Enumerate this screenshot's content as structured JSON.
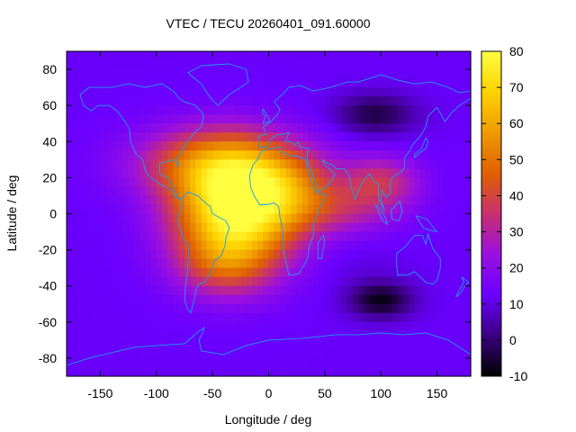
{
  "chart_data": {
    "type": "heatmap",
    "title": "VTEC / TECU 20260401_091.60000",
    "xlabel": "Longitude / deg",
    "ylabel": "Latitude / deg",
    "xlim": [
      -180,
      180
    ],
    "ylim": [
      -90,
      90
    ],
    "xticks": [
      -150,
      -100,
      -50,
      0,
      50,
      100,
      150
    ],
    "yticks": [
      -80,
      -60,
      -40,
      -20,
      0,
      20,
      40,
      60,
      80
    ],
    "colorbar": {
      "min": -10,
      "max": 80,
      "ticks": [
        -10,
        0,
        10,
        20,
        30,
        40,
        50,
        60,
        70,
        80
      ],
      "palette": [
        "#000000",
        "#3a0080",
        "#6a00ff",
        "#9a10e0",
        "#c83070",
        "#e06000",
        "#ee9a00",
        "#ffd200",
        "#ffff40"
      ]
    },
    "background_tecu": 12,
    "features": [
      {
        "label": "crest-america",
        "lon": -30,
        "lat": 0,
        "tecu": 78,
        "sig_lon": 38,
        "sig_lat": 22
      },
      {
        "label": "crest-north-atlantic",
        "lon": -45,
        "lat": 28,
        "tecu": 46,
        "sig_lon": 50,
        "sig_lat": 14
      },
      {
        "label": "crest-north-africa",
        "lon": 20,
        "lat": 12,
        "tecu": 34,
        "sig_lon": 30,
        "sig_lat": 15
      },
      {
        "label": "crest-south-atlantic",
        "lon": -40,
        "lat": -30,
        "tecu": 28,
        "sig_lon": 30,
        "sig_lat": 12
      },
      {
        "label": "band-indian-ocean",
        "lon": 70,
        "lat": 2,
        "tecu": 26,
        "sig_lon": 35,
        "sig_lat": 10
      },
      {
        "label": "crest-south-asia",
        "lon": 100,
        "lat": 18,
        "tecu": 34,
        "sig_lon": 25,
        "sig_lat": 10
      },
      {
        "label": "south-atlantic-blob",
        "lon": 80,
        "lat": -30,
        "tecu": 10,
        "sig_lon": 30,
        "sig_lat": 10
      },
      {
        "label": "north-trough",
        "lon": 95,
        "lat": 55,
        "tecu": -4,
        "sig_lon": 25,
        "sig_lat": 8
      },
      {
        "label": "south-trough",
        "lon": 100,
        "lat": -48,
        "tecu": -8,
        "sig_lon": 20,
        "sig_lat": 7
      }
    ],
    "coastlines": [
      {
        "name": "north-america",
        "points": [
          [
            -168,
            66
          ],
          [
            -160,
            70
          ],
          [
            -140,
            70
          ],
          [
            -125,
            72
          ],
          [
            -110,
            70
          ],
          [
            -95,
            72
          ],
          [
            -85,
            68
          ],
          [
            -80,
            64
          ],
          [
            -75,
            62
          ],
          [
            -65,
            60
          ],
          [
            -58,
            55
          ],
          [
            -60,
            48
          ],
          [
            -66,
            45
          ],
          [
            -70,
            42
          ],
          [
            -75,
            38
          ],
          [
            -77,
            35
          ],
          [
            -81,
            31
          ],
          [
            -80,
            26
          ],
          [
            -82,
            28
          ],
          [
            -85,
            30
          ],
          [
            -90,
            29
          ],
          [
            -97,
            28
          ],
          [
            -97,
            22
          ],
          [
            -90,
            20
          ],
          [
            -88,
            18
          ],
          [
            -85,
            15
          ],
          [
            -80,
            9
          ],
          [
            -78,
            8
          ],
          [
            -83,
            9
          ],
          [
            -87,
            13
          ],
          [
            -92,
            15
          ],
          [
            -96,
            16
          ],
          [
            -105,
            20
          ],
          [
            -110,
            24
          ],
          [
            -112,
            30
          ],
          [
            -118,
            33
          ],
          [
            -123,
            40
          ],
          [
            -124,
            47
          ],
          [
            -128,
            51
          ],
          [
            -135,
            57
          ],
          [
            -142,
            60
          ],
          [
            -152,
            60
          ],
          [
            -158,
            57
          ],
          [
            -165,
            60
          ],
          [
            -168,
            66
          ]
        ]
      },
      {
        "name": "south-america",
        "points": [
          [
            -78,
            8
          ],
          [
            -72,
            12
          ],
          [
            -63,
            10
          ],
          [
            -58,
            7
          ],
          [
            -52,
            4
          ],
          [
            -50,
            0
          ],
          [
            -44,
            -2
          ],
          [
            -38,
            -4
          ],
          [
            -35,
            -8
          ],
          [
            -38,
            -13
          ],
          [
            -39,
            -18
          ],
          [
            -42,
            -23
          ],
          [
            -48,
            -26
          ],
          [
            -52,
            -33
          ],
          [
            -57,
            -38
          ],
          [
            -62,
            -39
          ],
          [
            -65,
            -42
          ],
          [
            -66,
            -47
          ],
          [
            -68,
            -51
          ],
          [
            -69,
            -55
          ],
          [
            -72,
            -53
          ],
          [
            -75,
            -48
          ],
          [
            -74,
            -40
          ],
          [
            -72,
            -30
          ],
          [
            -71,
            -18
          ],
          [
            -76,
            -14
          ],
          [
            -79,
            -8
          ],
          [
            -81,
            -4
          ],
          [
            -80,
            0
          ],
          [
            -77,
            4
          ],
          [
            -78,
            8
          ]
        ]
      },
      {
        "name": "greenland",
        "points": [
          [
            -72,
            78
          ],
          [
            -60,
            82
          ],
          [
            -35,
            83
          ],
          [
            -20,
            80
          ],
          [
            -18,
            73
          ],
          [
            -25,
            70
          ],
          [
            -35,
            66
          ],
          [
            -45,
            60
          ],
          [
            -50,
            63
          ],
          [
            -55,
            67
          ],
          [
            -60,
            72
          ],
          [
            -72,
            78
          ]
        ]
      },
      {
        "name": "africa",
        "points": [
          [
            -17,
            21
          ],
          [
            -16,
            15
          ],
          [
            -13,
            10
          ],
          [
            -8,
            5
          ],
          [
            -2,
            5
          ],
          [
            5,
            6
          ],
          [
            9,
            4
          ],
          [
            10,
            -2
          ],
          [
            12,
            -7
          ],
          [
            13,
            -12
          ],
          [
            12,
            -17
          ],
          [
            15,
            -25
          ],
          [
            18,
            -34
          ],
          [
            22,
            -34
          ],
          [
            27,
            -33
          ],
          [
            32,
            -28
          ],
          [
            35,
            -24
          ],
          [
            36,
            -18
          ],
          [
            40,
            -12
          ],
          [
            40,
            -5
          ],
          [
            44,
            1
          ],
          [
            51,
            11
          ],
          [
            44,
            11
          ],
          [
            39,
            15
          ],
          [
            36,
            22
          ],
          [
            33,
            30
          ],
          [
            25,
            32
          ],
          [
            20,
            32
          ],
          [
            11,
            34
          ],
          [
            10,
            37
          ],
          [
            0,
            36
          ],
          [
            -6,
            35
          ],
          [
            -10,
            30
          ],
          [
            -14,
            27
          ],
          [
            -17,
            21
          ]
        ]
      },
      {
        "name": "europe-asia",
        "points": [
          [
            -9,
            39
          ],
          [
            -9,
            43
          ],
          [
            -2,
            44
          ],
          [
            -5,
            48
          ],
          [
            2,
            51
          ],
          [
            5,
            53
          ],
          [
            8,
            55
          ],
          [
            10,
            58
          ],
          [
            5,
            62
          ],
          [
            12,
            66
          ],
          [
            18,
            70
          ],
          [
            28,
            71
          ],
          [
            40,
            68
          ],
          [
            55,
            70
          ],
          [
            70,
            73
          ],
          [
            80,
            73
          ],
          [
            100,
            77
          ],
          [
            115,
            74
          ],
          [
            130,
            72
          ],
          [
            145,
            73
          ],
          [
            160,
            70
          ],
          [
            170,
            67
          ],
          [
            180,
            68
          ],
          [
            180,
            64
          ],
          [
            170,
            60
          ],
          [
            163,
            56
          ],
          [
            157,
            51
          ],
          [
            150,
            59
          ],
          [
            142,
            54
          ],
          [
            140,
            48
          ],
          [
            135,
            43
          ],
          [
            128,
            38
          ],
          [
            126,
            35
          ],
          [
            121,
            31
          ],
          [
            121,
            25
          ],
          [
            117,
            23
          ],
          [
            110,
            20
          ],
          [
            108,
            16
          ],
          [
            109,
            12
          ],
          [
            105,
            9
          ],
          [
            101,
            13
          ],
          [
            100,
            8
          ],
          [
            103,
            2
          ],
          [
            98,
            8
          ],
          [
            98,
            16
          ],
          [
            94,
            18
          ],
          [
            90,
            22
          ],
          [
            86,
            20
          ],
          [
            80,
            13
          ],
          [
            77,
            8
          ],
          [
            73,
            16
          ],
          [
            72,
            21
          ],
          [
            67,
            25
          ],
          [
            60,
            25
          ],
          [
            57,
            27
          ],
          [
            52,
            28
          ],
          [
            48,
            30
          ],
          [
            50,
            27
          ],
          [
            56,
            24
          ],
          [
            59,
            22
          ],
          [
            55,
            17
          ],
          [
            44,
            12
          ],
          [
            43,
            16
          ],
          [
            35,
            28
          ],
          [
            34,
            32
          ],
          [
            36,
            36
          ],
          [
            28,
            37
          ],
          [
            26,
            40
          ],
          [
            23,
            38
          ],
          [
            20,
            40
          ],
          [
            15,
            40
          ],
          [
            18,
            45
          ],
          [
            12,
            44
          ],
          [
            8,
            44
          ],
          [
            3,
            42
          ],
          [
            -2,
            37
          ],
          [
            -9,
            37
          ],
          [
            -9,
            39
          ]
        ]
      },
      {
        "name": "australia",
        "points": [
          [
            114,
            -22
          ],
          [
            122,
            -18
          ],
          [
            130,
            -12
          ],
          [
            137,
            -12
          ],
          [
            140,
            -17
          ],
          [
            142,
            -11
          ],
          [
            146,
            -19
          ],
          [
            153,
            -25
          ],
          [
            153,
            -30
          ],
          [
            150,
            -37
          ],
          [
            146,
            -39
          ],
          [
            140,
            -38
          ],
          [
            135,
            -35
          ],
          [
            130,
            -32
          ],
          [
            124,
            -34
          ],
          [
            115,
            -34
          ],
          [
            114,
            -28
          ],
          [
            114,
            -22
          ]
        ]
      },
      {
        "name": "great-britain",
        "points": [
          [
            -5,
            50
          ],
          [
            1,
            51
          ],
          [
            0,
            53
          ],
          [
            -3,
            56
          ],
          [
            -5,
            58
          ],
          [
            -6,
            56
          ],
          [
            -3,
            54
          ],
          [
            -5,
            50
          ]
        ]
      },
      {
        "name": "madagascar",
        "points": [
          [
            44,
            -25
          ],
          [
            47,
            -25
          ],
          [
            50,
            -15
          ],
          [
            49,
            -12
          ],
          [
            44,
            -16
          ],
          [
            44,
            -25
          ]
        ]
      },
      {
        "name": "borneo",
        "points": [
          [
            109,
            2
          ],
          [
            117,
            7
          ],
          [
            119,
            1
          ],
          [
            116,
            -4
          ],
          [
            110,
            -3
          ],
          [
            109,
            2
          ]
        ]
      },
      {
        "name": "sumatra",
        "points": [
          [
            95,
            5
          ],
          [
            98,
            4
          ],
          [
            104,
            -2
          ],
          [
            106,
            -6
          ],
          [
            102,
            -4
          ],
          [
            95,
            5
          ]
        ]
      },
      {
        "name": "new-guinea",
        "points": [
          [
            131,
            -1
          ],
          [
            141,
            -3
          ],
          [
            150,
            -10
          ],
          [
            143,
            -9
          ],
          [
            138,
            -8
          ],
          [
            131,
            -1
          ]
        ]
      },
      {
        "name": "japan",
        "points": [
          [
            130,
            31
          ],
          [
            135,
            34
          ],
          [
            140,
            36
          ],
          [
            142,
            40
          ],
          [
            140,
            42
          ],
          [
            136,
            36
          ],
          [
            130,
            33
          ],
          [
            130,
            31
          ]
        ]
      },
      {
        "name": "new-zealand",
        "points": [
          [
            172,
            -35
          ],
          [
            178,
            -38
          ],
          [
            174,
            -41
          ],
          [
            171,
            -44
          ],
          [
            167,
            -46
          ],
          [
            170,
            -42
          ],
          [
            174,
            -38
          ],
          [
            172,
            -35
          ]
        ]
      },
      {
        "name": "antarctica",
        "points": [
          [
            -180,
            -84
          ],
          [
            -160,
            -80
          ],
          [
            -120,
            -74
          ],
          [
            -100,
            -73
          ],
          [
            -75,
            -72
          ],
          [
            -62,
            -65
          ],
          [
            -57,
            -63
          ],
          [
            -62,
            -70
          ],
          [
            -60,
            -76
          ],
          [
            -40,
            -78
          ],
          [
            -20,
            -73
          ],
          [
            0,
            -70
          ],
          [
            30,
            -69
          ],
          [
            60,
            -67
          ],
          [
            80,
            -67
          ],
          [
            100,
            -66
          ],
          [
            120,
            -67
          ],
          [
            140,
            -66
          ],
          [
            160,
            -70
          ],
          [
            170,
            -74
          ],
          [
            180,
            -78
          ]
        ]
      }
    ]
  }
}
